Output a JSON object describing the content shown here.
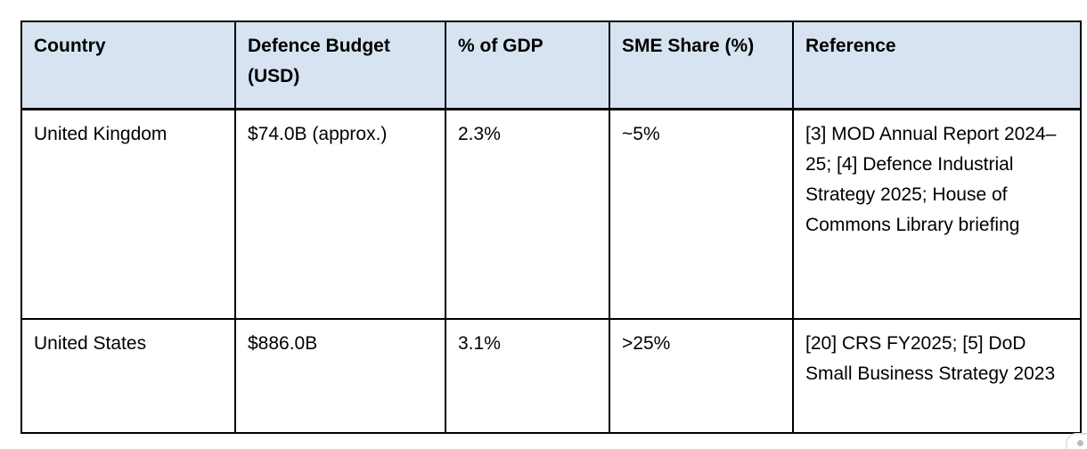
{
  "table": {
    "header_bg": "#d7e3f1",
    "border_color": "#000000",
    "columns": [
      "Country",
      "Defence Budget (USD)",
      "% of GDP",
      "SME Share (%)",
      "Reference"
    ],
    "rows": [
      {
        "country": "United Kingdom",
        "budget": "$74.0B (approx.)",
        "gdp": "2.3%",
        "sme": "~5%",
        "reference": "[3] MOD Annual Report 2024–25; [4] Defence Industrial Strategy 2025; House of Commons Library briefing"
      },
      {
        "country": "United States",
        "budget": "$886.0B",
        "gdp": "3.1%",
        "sme": ">25%",
        "reference": "[20] CRS FY2025; [5] DoD Small Business Strategy 2023"
      }
    ]
  },
  "floating_widget": {
    "dot_color": "#b9bcc1"
  }
}
